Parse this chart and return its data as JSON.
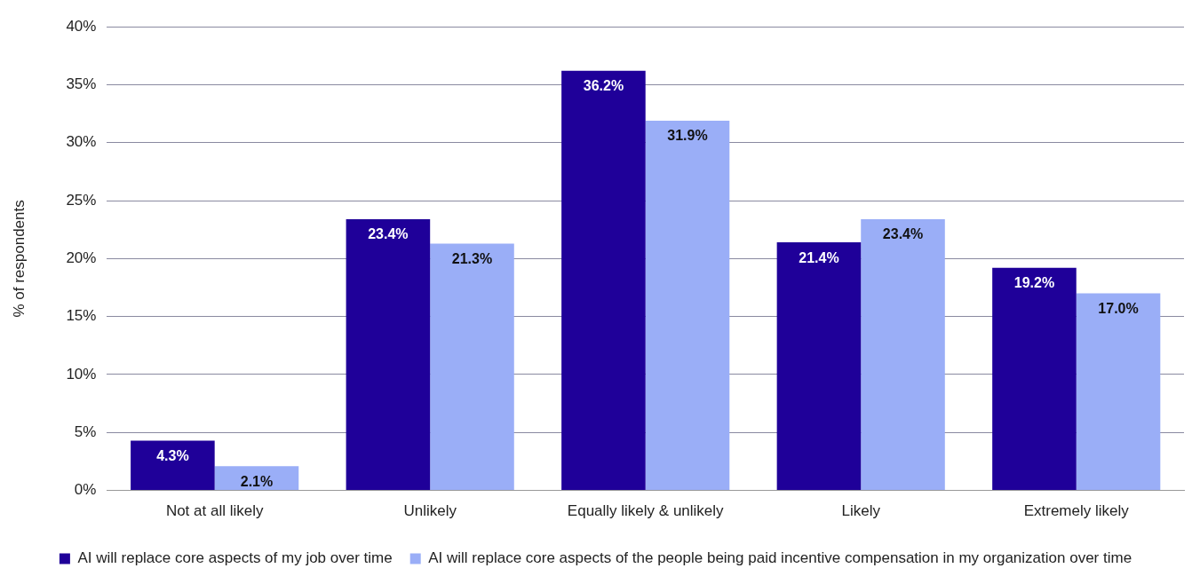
{
  "chart_data": {
    "type": "bar",
    "ylabel": "% of respondents",
    "categories": [
      "Not at all likely",
      "Unlikely",
      "Equally likely & unlikely",
      "Likely",
      "Extremely likely"
    ],
    "series": [
      {
        "name": "AI will replace core aspects of my job over time",
        "color": "#1f0099",
        "values": [
          4.3,
          23.4,
          36.2,
          21.4,
          19.2
        ],
        "value_labels": [
          "4.3%",
          "23.4%",
          "36.2%",
          "21.4%",
          "19.2%"
        ]
      },
      {
        "name": "AI will replace core aspects of the people being paid incentive compensation in my organization over time",
        "color": "#9aaef7",
        "values": [
          2.1,
          21.3,
          31.9,
          23.4,
          17.0
        ],
        "value_labels": [
          "2.1%",
          "21.3%",
          "31.9%",
          "23.4%",
          "17.0%"
        ]
      }
    ],
    "ylim": [
      0,
      40
    ],
    "yticks": [
      {
        "value": 0,
        "label": "0%"
      },
      {
        "value": 5,
        "label": "5%"
      },
      {
        "value": 10,
        "label": "10%"
      },
      {
        "value": 15,
        "label": "15%"
      },
      {
        "value": 20,
        "label": "20%"
      },
      {
        "value": 25,
        "label": "25%"
      },
      {
        "value": 30,
        "label": "30%"
      },
      {
        "value": 35,
        "label": "35%"
      },
      {
        "value": 40,
        "label": "40%"
      }
    ],
    "grid": "y",
    "legend": "bottom"
  }
}
